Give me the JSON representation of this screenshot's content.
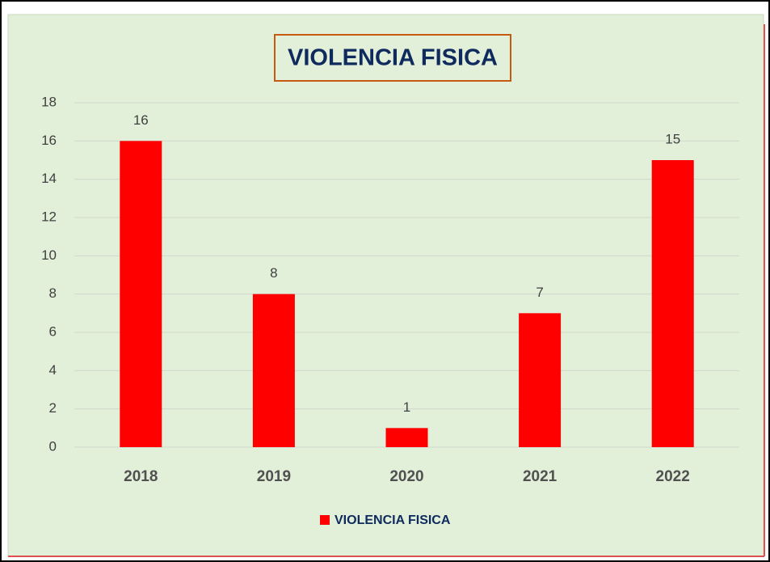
{
  "chart_data": {
    "type": "bar",
    "title": "VIOLENCIA FISICA",
    "categories": [
      "2018",
      "2019",
      "2020",
      "2021",
      "2022"
    ],
    "series": [
      {
        "name": "VIOLENCIA FISICA",
        "color": "#ff0000",
        "values": [
          16,
          8,
          1,
          7,
          15
        ]
      }
    ],
    "ylim": [
      0,
      18
    ],
    "yticks": [
      0,
      2,
      4,
      6,
      8,
      10,
      12,
      14,
      16,
      18
    ],
    "grid": true,
    "legend": "bottom"
  }
}
